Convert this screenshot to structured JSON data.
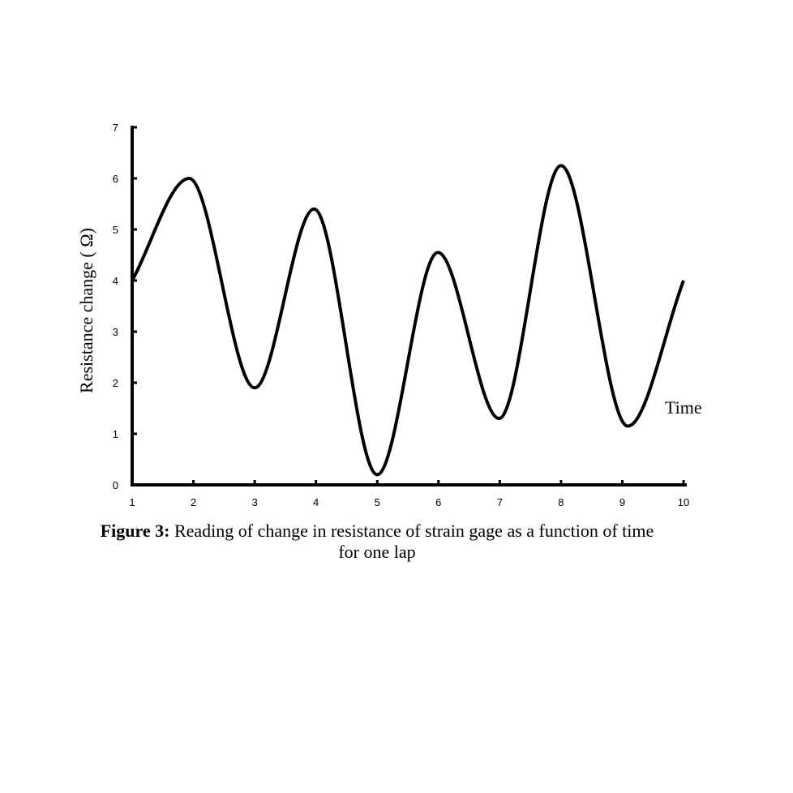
{
  "chart_data": {
    "type": "line",
    "xlabel": "Time",
    "ylabel": "Resistance change ( Ω)",
    "xlim": [
      1,
      10
    ],
    "ylim": [
      0,
      7
    ],
    "x_ticks": [
      "1",
      "2",
      "3",
      "4",
      "5",
      "6",
      "7",
      "8",
      "9",
      "10"
    ],
    "y_ticks": [
      "0",
      "1",
      "2",
      "3",
      "4",
      "5",
      "6",
      "7"
    ],
    "grid": false,
    "series": [
      {
        "x": [
          1.0,
          1.93,
          3.0,
          3.97,
          5.0,
          5.99,
          6.99,
          8.0,
          9.09,
          10.0
        ],
        "y": [
          4.0,
          6.0,
          1.9,
          5.4,
          0.2,
          4.55,
          1.3,
          6.25,
          1.15,
          4.0
        ]
      }
    ],
    "line_color": "#000000"
  },
  "caption": {
    "label": "Figure 3:",
    "text": "Reading of change in resistance of strain gage as a function of time for one lap"
  }
}
